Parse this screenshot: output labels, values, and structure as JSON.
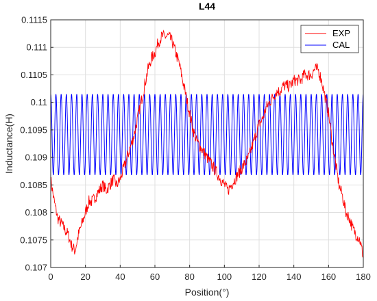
{
  "chart_data": {
    "type": "line",
    "title": "L44",
    "xlabel": "Position(°)",
    "ylabel": "Inductance(H)",
    "xlim": [
      0,
      180
    ],
    "ylim": [
      0.107,
      0.1115
    ],
    "xticks": [
      "0",
      "20",
      "40",
      "60",
      "80",
      "100",
      "120",
      "140",
      "160",
      "180"
    ],
    "yticks": [
      "0.107",
      "0.1075",
      "0.108",
      "0.1085",
      "0.109",
      "0.1095",
      "0.11",
      "0.1105",
      "0.111",
      "0.1115"
    ],
    "grid": true,
    "legend_position": "top-right",
    "series": [
      {
        "name": "EXP",
        "color": "#ff0000",
        "x": [
          0,
          2,
          4,
          6,
          8,
          10,
          12,
          14,
          16,
          18,
          20,
          22,
          24,
          26,
          28,
          30,
          32,
          34,
          36,
          38,
          40,
          42,
          44,
          46,
          48,
          50,
          52,
          54,
          56,
          58,
          60,
          62,
          64,
          66,
          68,
          70,
          72,
          74,
          76,
          78,
          80,
          82,
          84,
          86,
          88,
          90,
          92,
          94,
          96,
          98,
          100,
          102,
          104,
          106,
          108,
          110,
          112,
          114,
          116,
          118,
          120,
          122,
          124,
          126,
          128,
          130,
          132,
          134,
          136,
          138,
          140,
          142,
          144,
          146,
          148,
          150,
          152,
          154,
          156,
          158,
          160,
          162,
          164,
          166,
          168,
          170,
          172,
          174,
          176,
          178,
          180
        ],
        "y": [
          0.1086,
          0.1082,
          0.1079,
          0.1078,
          0.1077,
          0.1076,
          0.1074,
          0.1073,
          0.1076,
          0.1078,
          0.108,
          0.1082,
          0.1082,
          0.1083,
          0.1084,
          0.1085,
          0.1084,
          0.1085,
          0.1086,
          0.1085,
          0.1086,
          0.1088,
          0.109,
          0.1092,
          0.1094,
          0.1097,
          0.11,
          0.1103,
          0.1106,
          0.1108,
          0.1109,
          0.1111,
          0.1112,
          0.1112,
          0.1112,
          0.1111,
          0.1109,
          0.1107,
          0.1104,
          0.1101,
          0.1098,
          0.1095,
          0.1093,
          0.1092,
          0.1091,
          0.109,
          0.1089,
          0.1088,
          0.1087,
          0.1086,
          0.1085,
          0.1084,
          0.1085,
          0.1086,
          0.1087,
          0.1088,
          0.1089,
          0.109,
          0.1092,
          0.1094,
          0.1096,
          0.1097,
          0.1099,
          0.11,
          0.1101,
          0.1102,
          0.1102,
          0.1103,
          0.1103,
          0.1103,
          0.1104,
          0.1104,
          0.1104,
          0.1105,
          0.1105,
          0.1105,
          0.1106,
          0.1106,
          0.1104,
          0.1101,
          0.1098,
          0.1093,
          0.1089,
          0.1085,
          0.1083,
          0.108,
          0.1079,
          0.1077,
          0.1076,
          0.1075,
          0.1072
        ]
      },
      {
        "name": "CAL",
        "color": "#0000ff",
        "x_start": 0,
        "x_end": 180,
        "period": 3,
        "min": 0.10868,
        "max": 0.11015
      }
    ]
  }
}
